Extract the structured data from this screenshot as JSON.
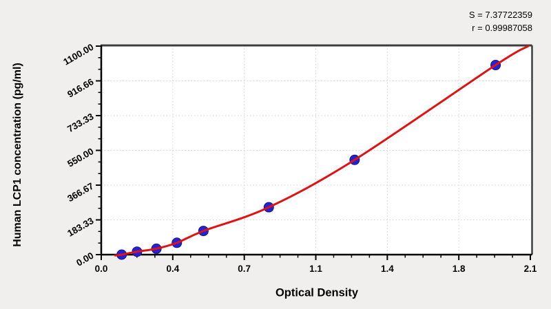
{
  "stats": {
    "s_label": "S = 7.37722359",
    "r_label": "r = 0.99987058"
  },
  "axes": {
    "x": {
      "title": "Optical Density",
      "min": 0,
      "max": 2.1,
      "major_divisions": 6,
      "minor_per_major": 4,
      "tick_labels": [
        "0.0",
        "0.4",
        "0.7",
        "1.1",
        "1.4",
        "1.8",
        "2.1"
      ]
    },
    "y": {
      "title": "Human LCP1 concentration (pg/ml)",
      "min": 0,
      "max": 1100,
      "major_divisions": 6,
      "minor_per_major": 3,
      "tick_labels": [
        "0.00",
        "183.33",
        "366.67",
        "550.00",
        "733.33",
        "916.66",
        "1100.00"
      ]
    }
  },
  "chart_data": {
    "type": "scatter",
    "title": "",
    "xlabel": "Optical Density",
    "ylabel": "Human LCP1 concentration (pg/ml)",
    "xlim": [
      0,
      2.1
    ],
    "ylim": [
      0,
      1100
    ],
    "grid": true,
    "legend": "none",
    "points": [
      {
        "od": 0.1,
        "conc": 0
      },
      {
        "od": 0.175,
        "conc": 15.6
      },
      {
        "od": 0.27,
        "conc": 31.25
      },
      {
        "od": 0.37,
        "conc": 62.5
      },
      {
        "od": 0.5,
        "conc": 125
      },
      {
        "od": 0.82,
        "conc": 250
      },
      {
        "od": 1.24,
        "conc": 500
      },
      {
        "od": 1.93,
        "conc": 1000
      }
    ],
    "fit_curve_anchors": [
      [
        0.068,
        -4
      ],
      [
        0.1,
        0
      ],
      [
        0.175,
        15.6
      ],
      [
        0.27,
        31.25
      ],
      [
        0.37,
        62.5
      ],
      [
        0.5,
        125
      ],
      [
        0.82,
        250
      ],
      [
        1.24,
        500
      ],
      [
        1.93,
        1000
      ],
      [
        2.09,
        1100
      ]
    ],
    "fit_stats": {
      "S": 7.37722359,
      "r": 0.99987058
    }
  },
  "colors": {
    "background": "#f0efee",
    "plot_background": "#ffffff",
    "axis": "#000000",
    "frame_border": "#3d3d3d",
    "grid": "#d4d4d4",
    "curve": "#e01212",
    "point_fill": "#2323d6",
    "point_stroke": "#12128e",
    "text": "#000000"
  },
  "icons": {}
}
